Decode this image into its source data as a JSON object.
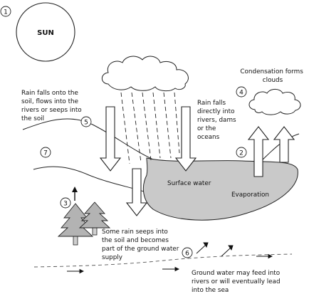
{
  "sun": {
    "label": "SUN"
  },
  "surface_water": {
    "label": "Surface water"
  },
  "evaporation": {
    "label": "Evaporation"
  },
  "condensation": {
    "lines": [
      "Condensation forms",
      "clouds"
    ]
  },
  "rain_soil": {
    "lines": [
      "Rain falls onto the",
      "soil, flows into the",
      "rivers or seeps into",
      "the soil"
    ]
  },
  "rain_direct": {
    "lines": [
      "Rain falls",
      "directly into",
      "rivers, dams",
      "or the",
      "oceans"
    ]
  },
  "seep": {
    "lines": [
      "Some rain seeps into",
      "the soil and becomes",
      "part of the ground water",
      "supply"
    ]
  },
  "ground_water": {
    "lines": [
      "Ground water may feed into",
      "rivers or will eventually lead",
      "into the sea"
    ]
  },
  "steps": [
    "1",
    "2",
    "3",
    "4",
    "5",
    "6",
    "7"
  ]
}
